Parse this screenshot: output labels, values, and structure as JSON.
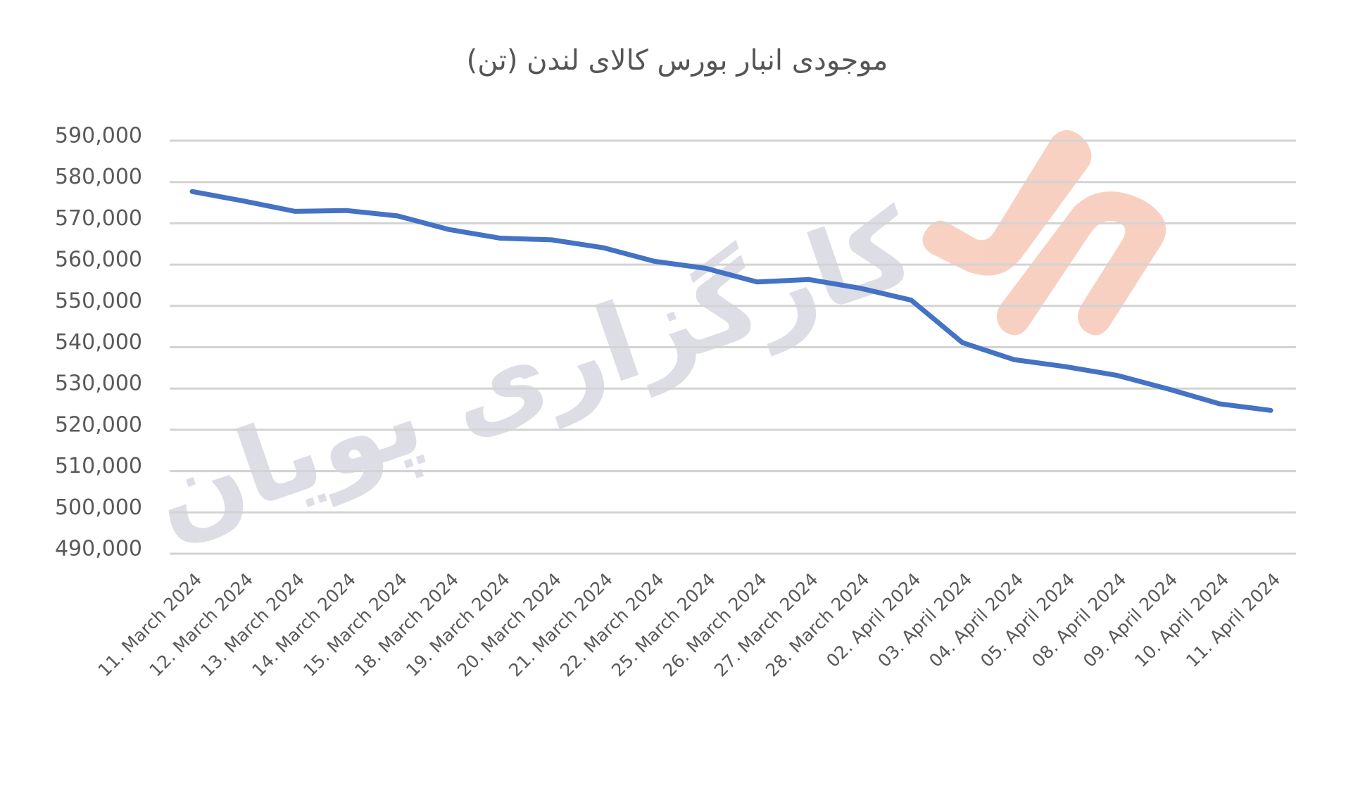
{
  "chart_data": {
    "type": "line",
    "title": "موجودی انبار بورس کالای لندن (تن)",
    "watermark": "کارگزاری پویان",
    "categories": [
      "11. March 2024",
      "12. March 2024",
      "13. March 2024",
      "14. March 2024",
      "15. March 2024",
      "18. March 2024",
      "19. March 2024",
      "20. March 2024",
      "21. March 2024",
      "22. March 2024",
      "25. March 2024",
      "26. March 2024",
      "27. March 2024",
      "28. March 2024",
      "02. April 2024",
      "03. April 2024",
      "04. April 2024",
      "05. April 2024",
      "08. April 2024",
      "09. April 2024",
      "10. April 2024",
      "11. April 2024"
    ],
    "series": [
      {
        "color": "#4472c4",
        "values": [
          577700,
          575400,
          572900,
          573100,
          571800,
          568500,
          566400,
          566000,
          564100,
          560800,
          559100,
          555800,
          556400,
          554300,
          551400,
          541100,
          537000,
          535300,
          533200,
          529900,
          526300,
          524700
        ]
      }
    ],
    "ylim": [
      490000,
      590000
    ],
    "yticks": [
      {
        "value": 490000,
        "label": "490,000"
      },
      {
        "value": 500000,
        "label": "500,000"
      },
      {
        "value": 510000,
        "label": "510,000"
      },
      {
        "value": 520000,
        "label": "520,000"
      },
      {
        "value": 530000,
        "label": "530,000"
      },
      {
        "value": 540000,
        "label": "540,000"
      },
      {
        "value": 550000,
        "label": "550,000"
      },
      {
        "value": 560000,
        "label": "560,000"
      },
      {
        "value": 570000,
        "label": "570,000"
      },
      {
        "value": 580000,
        "label": "580,000"
      },
      {
        "value": 590000,
        "label": "590,000"
      }
    ],
    "grid": true
  }
}
